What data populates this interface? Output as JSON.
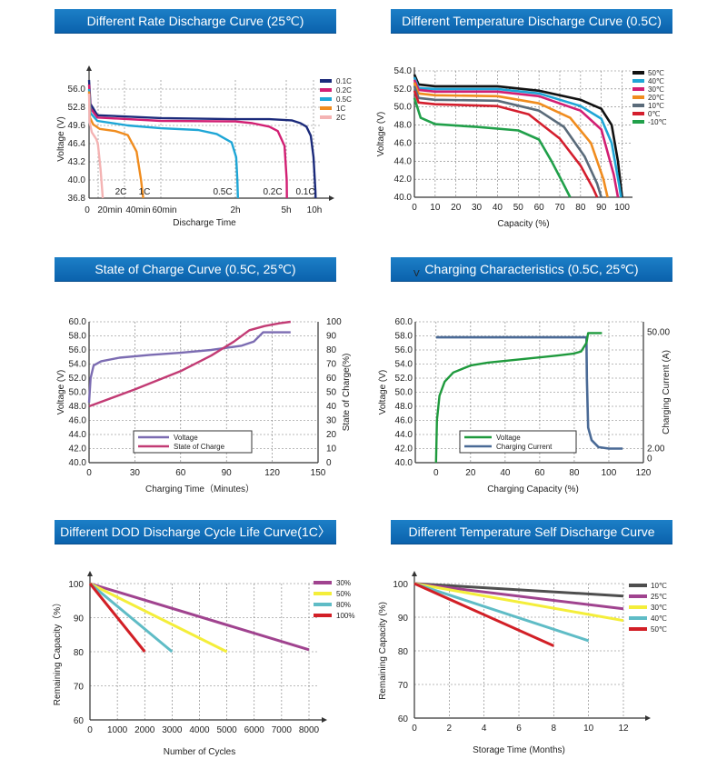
{
  "chart_data": [
    {
      "type": "line",
      "title": "Different Rate Discharge Curve (25℃)",
      "xlabel": "Discharge Time",
      "ylabel": "Voltage (V)",
      "xlim": [
        0,
        10.6
      ],
      "ylim": [
        36.8,
        57.6
      ],
      "y_ticks": [
        "56.0",
        "52.8",
        "49.6",
        "46.4",
        "43.2",
        "40.0",
        "36.8"
      ],
      "x_ticks": [
        "0",
        "20min",
        "40min",
        "60min",
        "2h",
        "5h",
        "10h"
      ],
      "series": [
        {
          "name": "0.1C",
          "color": "#1b2a7a",
          "label": "0.1C",
          "values": [
            [
              0,
              57.6
            ],
            [
              0.05,
              53.4
            ],
            [
              0.3,
              51.4
            ],
            [
              1,
              50.9
            ],
            [
              2,
              50.7
            ],
            [
              4,
              50.7
            ],
            [
              6,
              50.5
            ],
            [
              7.6,
              50.0
            ],
            [
              8.7,
              49.4
            ],
            [
              9.5,
              47.8
            ],
            [
              10.0,
              44.0
            ],
            [
              10.18,
              38.0
            ],
            [
              10.2,
              36.8
            ]
          ]
        },
        {
          "name": "0.2C",
          "color": "#d21f73",
          "label": "0.2C",
          "values": [
            [
              0,
              56.8
            ],
            [
              0.05,
              52.6
            ],
            [
              0.3,
              51.0
            ],
            [
              1,
              50.4
            ],
            [
              2,
              50.3
            ],
            [
              3,
              50.0
            ],
            [
              4,
              49.4
            ],
            [
              4.5,
              48.6
            ],
            [
              4.9,
              46.0
            ],
            [
              5.08,
              40.0
            ],
            [
              5.12,
              36.8
            ]
          ]
        },
        {
          "name": "0.5C",
          "color": "#1ea6d6",
          "label": "0.5C",
          "values": [
            [
              0,
              56.0
            ],
            [
              0.05,
              51.8
            ],
            [
              0.3,
              50.4
            ],
            [
              0.7,
              49.6
            ],
            [
              1,
              49.1
            ],
            [
              1.5,
              48.8
            ],
            [
              1.75,
              48.1
            ],
            [
              1.95,
              46.6
            ],
            [
              2.05,
              44.0
            ],
            [
              2.12,
              40.0
            ],
            [
              2.15,
              36.8
            ]
          ]
        },
        {
          "name": "1C",
          "color": "#f08c1e",
          "label": "1C",
          "values": [
            [
              0,
              55.6
            ],
            [
              0.03,
              51.0
            ],
            [
              0.15,
              49.8
            ],
            [
              0.35,
              49.0
            ],
            [
              0.55,
              48.6
            ],
            [
              0.7,
              47.9
            ],
            [
              0.78,
              45.0
            ],
            [
              0.82,
              40.0
            ],
            [
              0.84,
              36.8
            ]
          ]
        },
        {
          "name": "2C",
          "color": "#f4b3b3",
          "label": "2C",
          "values": [
            [
              0,
              55.2
            ],
            [
              0.02,
              50.2
            ],
            [
              0.1,
              48.4
            ],
            [
              0.18,
              47.8
            ],
            [
              0.26,
              47.2
            ],
            [
              0.32,
              46.4
            ],
            [
              0.36,
              42.0
            ],
            [
              0.38,
              38.5
            ],
            [
              0.39,
              36.8
            ]
          ]
        }
      ]
    },
    {
      "type": "line",
      "title": "Different Temperature Discharge  Curve (0.5C)",
      "xlabel": "Capacity (%)",
      "ylabel": "Voltage (V)",
      "xlim": [
        0,
        105
      ],
      "ylim": [
        40.0,
        54.0
      ],
      "y_ticks": [
        "54.0",
        "52.0",
        "50.0",
        "48.0",
        "46.0",
        "44.0",
        "42.0",
        "40.0"
      ],
      "x_ticks": [
        "0",
        "10",
        "20",
        "30",
        "40",
        "50",
        "60",
        "70",
        "80",
        "90",
        "100"
      ],
      "series": [
        {
          "name": "50℃",
          "color": "#111111",
          "values": [
            [
              0,
              53.6
            ],
            [
              2,
              52.5
            ],
            [
              10,
              52.3
            ],
            [
              40,
              52.3
            ],
            [
              60,
              51.8
            ],
            [
              80,
              50.8
            ],
            [
              90,
              49.8
            ],
            [
              95,
              48.0
            ],
            [
              98,
              44.0
            ],
            [
              100,
              40.0
            ]
          ]
        },
        {
          "name": "40℃",
          "color": "#1ea6d6",
          "values": [
            [
              0,
              53.3
            ],
            [
              2,
              52.1
            ],
            [
              10,
              52.0
            ],
            [
              40,
              52.0
            ],
            [
              60,
              51.5
            ],
            [
              80,
              50.1
            ],
            [
              90,
              48.7
            ],
            [
              95,
              46.0
            ],
            [
              98.5,
              41.5
            ],
            [
              99.5,
              40.0
            ]
          ]
        },
        {
          "name": "30℃",
          "color": "#d21f73",
          "values": [
            [
              0,
              53.0
            ],
            [
              2,
              51.9
            ],
            [
              10,
              51.7
            ],
            [
              40,
              51.7
            ],
            [
              60,
              51.2
            ],
            [
              80,
              49.6
            ],
            [
              90,
              47.5
            ],
            [
              96,
              42.5
            ],
            [
              98,
              40.0
            ]
          ]
        },
        {
          "name": "20℃",
          "color": "#f08c1e",
          "values": [
            [
              0,
              52.7
            ],
            [
              2,
              51.5
            ],
            [
              10,
              51.3
            ],
            [
              40,
              51.2
            ],
            [
              60,
              50.4
            ],
            [
              75,
              48.8
            ],
            [
              85,
              46.0
            ],
            [
              91,
              42.0
            ],
            [
              93,
              40.0
            ]
          ]
        },
        {
          "name": "10℃",
          "color": "#5a6b7a",
          "values": [
            [
              0,
              52.3
            ],
            [
              2,
              51.0
            ],
            [
              10,
              50.8
            ],
            [
              40,
              50.7
            ],
            [
              60,
              49.6
            ],
            [
              72,
              47.8
            ],
            [
              82,
              44.5
            ],
            [
              88,
              41.5
            ],
            [
              90,
              40.0
            ]
          ]
        },
        {
          "name": "0℃",
          "color": "#d41e2d",
          "values": [
            [
              0,
              51.8
            ],
            [
              2,
              50.5
            ],
            [
              10,
              50.3
            ],
            [
              40,
              50.1
            ],
            [
              55,
              49.2
            ],
            [
              70,
              46.5
            ],
            [
              80,
              43.5
            ],
            [
              86,
              41.0
            ],
            [
              88,
              40.0
            ]
          ]
        },
        {
          "name": "-10℃",
          "color": "#21a04a",
          "values": [
            [
              0,
              51.0
            ],
            [
              3,
              48.8
            ],
            [
              10,
              48.1
            ],
            [
              30,
              47.8
            ],
            [
              50,
              47.4
            ],
            [
              60,
              46.4
            ],
            [
              66,
              44.0
            ],
            [
              71,
              41.8
            ],
            [
              75,
              40.0
            ]
          ]
        }
      ]
    },
    {
      "type": "line",
      "title": "State of Charge  Curve  (0.5C, 25℃)",
      "xlabel": "Charging Time（Minutes）",
      "ylabel": "Voltage (V)",
      "ylabel_right": "State of Charge(%)",
      "xlim": [
        0,
        150
      ],
      "ylim": [
        40.0,
        60.0
      ],
      "ylim_right": [
        0,
        100
      ],
      "x_ticks": [
        "0",
        "30",
        "60",
        "90",
        "120",
        "150"
      ],
      "y_ticks": [
        "60.0",
        "58.0",
        "56.0",
        "54.0",
        "52.0",
        "50.0",
        "48.0",
        "46.0",
        "44.0",
        "42.0",
        "40.0"
      ],
      "y2_ticks": [
        "100",
        "90",
        "80",
        "70",
        "60",
        "50",
        "40",
        "30",
        "20",
        "10",
        "0"
      ],
      "series": [
        {
          "name": "Voltage",
          "color": "#7c6cb2",
          "axis": "left",
          "values": [
            [
              0,
              48.5
            ],
            [
              1,
              52.0
            ],
            [
              3,
              53.8
            ],
            [
              8,
              54.4
            ],
            [
              20,
              54.9
            ],
            [
              40,
              55.3
            ],
            [
              60,
              55.6
            ],
            [
              80,
              56.0
            ],
            [
              100,
              56.6
            ],
            [
              108,
              57.2
            ],
            [
              114,
              58.5
            ],
            [
              132,
              58.5
            ]
          ]
        },
        {
          "name": "State of Charge",
          "color": "#c23b74",
          "axis": "right",
          "values": [
            [
              0,
              40
            ],
            [
              30,
              52
            ],
            [
              60,
              65
            ],
            [
              80,
              76
            ],
            [
              95,
              86
            ],
            [
              105,
              94
            ],
            [
              115,
              97
            ],
            [
              125,
              99
            ],
            [
              132,
              100
            ]
          ]
        }
      ],
      "legend": [
        "Voltage",
        "State of Charge"
      ]
    },
    {
      "type": "line",
      "title": "Charging Characteristics (0.5C, 25℃)",
      "xlabel": "Charging Capacity (%)",
      "ylabel": "Voltage (V)",
      "ylabel_right": "Charging Current (A)",
      "xlim": [
        0,
        120
      ],
      "ylim": [
        40.0,
        60.0
      ],
      "x_ticks": [
        "0",
        "20",
        "40",
        "60",
        "80",
        "100",
        "120"
      ],
      "y_ticks": [
        "60.0",
        "58.0",
        "56.0",
        "54.0",
        "52.0",
        "50.0",
        "48.0",
        "46.0",
        "44.0",
        "42.0",
        "40.0"
      ],
      "y2_ticks": [
        "50.00",
        "2.00",
        "0"
      ],
      "extra_text": "V",
      "series": [
        {
          "name": "Voltage",
          "color": "#1f9a3d",
          "values": [
            [
              0,
              40.0
            ],
            [
              0.5,
              46.0
            ],
            [
              2,
              49.5
            ],
            [
              5,
              51.5
            ],
            [
              10,
              52.8
            ],
            [
              20,
              53.8
            ],
            [
              30,
              54.2
            ],
            [
              50,
              54.7
            ],
            [
              70,
              55.2
            ],
            [
              80,
              55.5
            ],
            [
              84,
              55.8
            ],
            [
              87,
              57.0
            ],
            [
              88,
              58.4
            ],
            [
              96,
              58.4
            ]
          ]
        },
        {
          "name": "Charging Current",
          "color": "#4a6a96",
          "values": [
            [
              0,
              57.8
            ],
            [
              86,
              57.8
            ],
            [
              87,
              57.8
            ],
            [
              87.3,
              52.0
            ],
            [
              88,
              45.0
            ],
            [
              90,
              43.2
            ],
            [
              94,
              42.2
            ],
            [
              100,
              42.0
            ],
            [
              108,
              42.0
            ]
          ]
        }
      ],
      "legend": [
        "Voltage",
        "Charging Current"
      ]
    },
    {
      "type": "line",
      "title": "Different DOD Discharge Cycle Life Curve(1C〉",
      "xlabel": "Number of Cycles",
      "ylabel": "Remaining Capacity（%）",
      "xlim": [
        0,
        8000
      ],
      "ylim": [
        60,
        100
      ],
      "x_ticks": [
        "0",
        "1000",
        "2000",
        "3000",
        "4000",
        "5000",
        "6000",
        "7000",
        "8000"
      ],
      "y_ticks": [
        "100",
        "90",
        "80",
        "70",
        "60"
      ],
      "series": [
        {
          "name": "30%",
          "color": "#a0438f",
          "values": [
            [
              0,
              100
            ],
            [
              8000,
              80.6
            ]
          ]
        },
        {
          "name": "50%",
          "color": "#f4ee3a",
          "values": [
            [
              0,
              100
            ],
            [
              5000,
              80
            ]
          ]
        },
        {
          "name": "80%",
          "color": "#5fbcc6",
          "values": [
            [
              0,
              100
            ],
            [
              3000,
              80
            ]
          ]
        },
        {
          "name": "100%",
          "color": "#d21f26",
          "values": [
            [
              0,
              100
            ],
            [
              2000,
              80
            ]
          ]
        }
      ]
    },
    {
      "type": "line",
      "title": "Different Temperature Self Discharge Curve",
      "xlabel": "Storage Time (Months)",
      "ylabel": "Remaining Capacity (%)",
      "xlim": [
        0,
        12
      ],
      "ylim": [
        60,
        100
      ],
      "x_ticks": [
        "0",
        "2",
        "4",
        "6",
        "8",
        "10",
        "12"
      ],
      "y_ticks": [
        "100",
        "90",
        "80",
        "70",
        "60"
      ],
      "series": [
        {
          "name": "10℃",
          "color": "#4e4e4e",
          "values": [
            [
              0,
              100
            ],
            [
              12,
              96.3
            ]
          ]
        },
        {
          "name": "25℃",
          "color": "#a0438f",
          "values": [
            [
              0,
              100
            ],
            [
              12,
              92.5
            ]
          ]
        },
        {
          "name": "30℃",
          "color": "#f4ee3a",
          "values": [
            [
              0,
              100
            ],
            [
              12,
              89
            ]
          ]
        },
        {
          "name": "40℃",
          "color": "#5fbcc6",
          "values": [
            [
              0,
              100
            ],
            [
              10,
              83
            ]
          ]
        },
        {
          "name": "50℃",
          "color": "#d21f26",
          "values": [
            [
              0,
              100
            ],
            [
              8,
              81.5
            ]
          ]
        }
      ]
    }
  ]
}
